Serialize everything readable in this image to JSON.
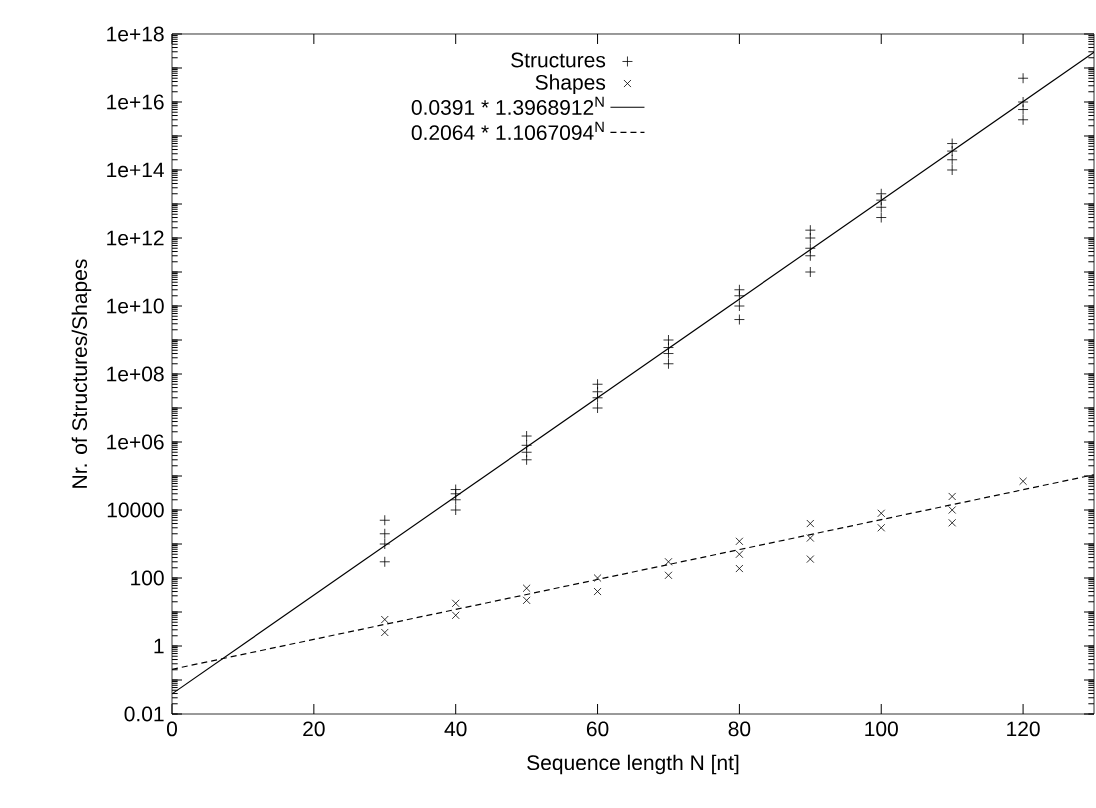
{
  "chart_data": {
    "type": "scatter",
    "xlabel": "Sequence length N [nt]",
    "ylabel": "Nr. of Structures/Shapes",
    "log": "y",
    "xlim": [
      0,
      130
    ],
    "ylim": [
      0.01,
      1e+18
    ],
    "xticks": [
      0,
      20,
      40,
      60,
      80,
      100,
      120
    ],
    "yticks": [
      0.01,
      {
        "value": 0.1,
        "label": null
      },
      1,
      {
        "value": 10,
        "label": null
      },
      100,
      {
        "value": 1000,
        "label": null
      },
      10000,
      {
        "value": 100000.0,
        "label": null
      },
      {
        "value": 1000000.0,
        "label": "1e+06"
      },
      {
        "value": 10000000.0,
        "label": null
      },
      {
        "value": 100000000.0,
        "label": "1e+08"
      },
      {
        "value": 1000000000.0,
        "label": null
      },
      {
        "value": 10000000000.0,
        "label": "1e+10"
      },
      {
        "value": 100000000000.0,
        "label": null
      },
      {
        "value": 1000000000000.0,
        "label": "1e+12"
      },
      {
        "value": 10000000000000.0,
        "label": null
      },
      {
        "value": 100000000000000.0,
        "label": "1e+14"
      },
      {
        "value": 1000000000000000.0,
        "label": null
      },
      {
        "value": 1e+16,
        "label": "1e+16"
      },
      {
        "value": 1e+17,
        "label": null
      },
      {
        "value": 1e+18,
        "label": "1e+18"
      }
    ],
    "grid": false,
    "legend": "top left",
    "series": [
      {
        "name": "Structures",
        "marker": "plus",
        "color": "#000000",
        "x": [
          30,
          30,
          30,
          30,
          40,
          40,
          40,
          40,
          50,
          50,
          50,
          50,
          60,
          60,
          60,
          60,
          70,
          70,
          70,
          70,
          80,
          80,
          80,
          80,
          90,
          90,
          90,
          90,
          90,
          100,
          100,
          100,
          100,
          110,
          110,
          110,
          110,
          120,
          120,
          120,
          120
        ],
        "values": [
          300,
          1000,
          2000,
          5000,
          10000,
          20000,
          30000,
          40000,
          300000,
          500000,
          800000,
          1500000,
          10000000.0,
          20000000.0,
          30000000.0,
          50000000.0,
          200000000.0,
          400000000.0,
          600000000.0,
          1000000000.0,
          4000000000.0,
          10000000000.0,
          20000000000.0,
          30000000000.0,
          100000000000.0,
          300000000000.0,
          500000000000.0,
          1000000000000.0,
          1700000000000.0,
          4000000000000.0,
          8000000000000.0,
          13000000000000.0,
          20000000000000.0,
          100000000000000.0,
          200000000000000.0,
          360000000000000.0,
          600000000000000.0,
          3000000000000000.0,
          6000000000000000.0,
          1e+16,
          5e+16
        ]
      },
      {
        "name": "Shapes",
        "marker": "cross",
        "color": "#000000",
        "x": [
          30,
          30,
          40,
          40,
          50,
          50,
          60,
          60,
          70,
          70,
          80,
          80,
          80,
          90,
          90,
          90,
          100,
          100,
          110,
          110,
          110,
          120
        ],
        "values": [
          2.5,
          6,
          8,
          18,
          22,
          50,
          40,
          100,
          120,
          300,
          190,
          500,
          1200,
          360,
          1500,
          4000,
          3000,
          8000,
          4200,
          10000,
          25000,
          70000
        ]
      },
      {
        "name": "0.0391 * 1.3968912$^{N}$",
        "type": "line",
        "marker": "none",
        "line_style": "solid",
        "color": "#000000",
        "x": [
          0,
          130
        ],
        "values": [
          0.0391,
          2.9e+17
        ]
      },
      {
        "name": "0.2064 * 1.1067094$^{N}$",
        "type": "line",
        "marker": "none",
        "line_style": "dashed",
        "color": "#000000",
        "x": [
          0,
          130
        ],
        "values": [
          0.2064,
          109000.0
        ]
      }
    ]
  }
}
